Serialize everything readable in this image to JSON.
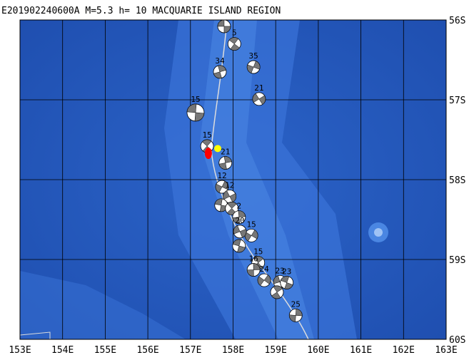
{
  "title": "E201902240600A M=5.3 h= 10 MACQUARIE ISLAND REGION",
  "map": {
    "lonlim": [
      153,
      163
    ],
    "latlim": [
      56,
      60
    ],
    "lonticks": [
      {
        "value": 153,
        "label": "153E"
      },
      {
        "value": 154,
        "label": "154E"
      },
      {
        "value": 155,
        "label": "155E"
      },
      {
        "value": 156,
        "label": "156E"
      },
      {
        "value": 157,
        "label": "157E"
      },
      {
        "value": 158,
        "label": "158E"
      },
      {
        "value": 159,
        "label": "159E"
      },
      {
        "value": 160,
        "label": "160E"
      },
      {
        "value": 161,
        "label": "161E"
      },
      {
        "value": 162,
        "label": "162E"
      },
      {
        "value": 163,
        "label": "163E"
      }
    ],
    "latticks": [
      {
        "value": 56,
        "label": "56S"
      },
      {
        "value": 57,
        "label": "57S"
      },
      {
        "value": 58,
        "label": "58S"
      },
      {
        "value": 59,
        "label": "59S"
      },
      {
        "value": 60,
        "label": "60S"
      }
    ],
    "main_event": {
      "lon": 157.42,
      "lat": 57.67
    },
    "centroid": {
      "lon": 157.64,
      "lat": 57.61
    },
    "events": [
      {
        "lon": 157.79,
        "lat": 56.08
      },
      {
        "lon": 158.03,
        "lat": 56.3,
        "depth": 5
      },
      {
        "lon": 157.69,
        "lat": 56.65,
        "depth": 34
      },
      {
        "lon": 158.48,
        "lat": 56.59,
        "depth": 35
      },
      {
        "lon": 158.61,
        "lat": 56.99,
        "depth": 21
      },
      {
        "lon": 157.12,
        "lat": 57.16,
        "depth": 15
      },
      {
        "lon": 157.39,
        "lat": 57.58,
        "depth": 15
      },
      {
        "lon": 157.82,
        "lat": 57.79,
        "depth": 21
      },
      {
        "lon": 157.74,
        "lat": 58.09,
        "depth": 12
      },
      {
        "lon": 157.92,
        "lat": 58.21,
        "depth": 12
      },
      {
        "lon": 157.72,
        "lat": 58.32
      },
      {
        "lon": 157.97,
        "lat": 58.36
      },
      {
        "lon": 158.14,
        "lat": 58.47,
        "depth": 2
      },
      {
        "lon": 158.43,
        "lat": 58.7,
        "depth": 15
      },
      {
        "lon": 158.16,
        "lat": 58.65,
        "depth": 20
      },
      {
        "lon": 158.14,
        "lat": 58.83
      },
      {
        "lon": 158.59,
        "lat": 59.04,
        "depth": 15
      },
      {
        "lon": 158.48,
        "lat": 59.13,
        "depth": 16
      },
      {
        "lon": 158.73,
        "lat": 59.26,
        "depth": 24
      },
      {
        "lon": 159.1,
        "lat": 59.28,
        "depth": 23
      },
      {
        "lon": 159.26,
        "lat": 59.29,
        "depth": 23
      },
      {
        "lon": 159.03,
        "lat": 59.41
      },
      {
        "lon": 159.47,
        "lat": 59.7,
        "depth": 25
      }
    ]
  }
}
